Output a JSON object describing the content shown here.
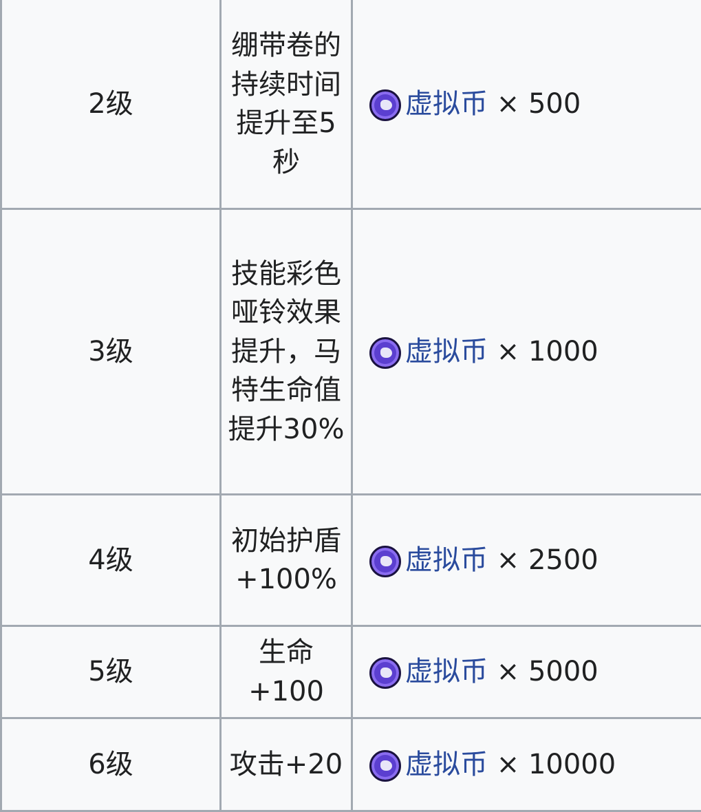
{
  "currency_icon": "coin-icon",
  "colors": {
    "border": "#a2a9b1",
    "background": "#f8f9fa",
    "link": "#2a4b9d",
    "coin": "#5b3fd0"
  },
  "rows": [
    {
      "level": "2级",
      "effect": "绷带卷的持续时间提升至5秒",
      "currency": "虚拟币",
      "amount": "× 500"
    },
    {
      "level": "3级",
      "effect": "技能彩色哑铃效果提升，马特生命值提升30%",
      "currency": "虚拟币",
      "amount": "× 1000"
    },
    {
      "level": "4级",
      "effect": "初始护盾+100%",
      "currency": "虚拟币",
      "amount": "× 2500"
    },
    {
      "level": "5级",
      "effect": "生命+100",
      "currency": "虚拟币",
      "amount": "× 5000"
    },
    {
      "level": "6级",
      "effect": "攻击+20",
      "currency": "虚拟币",
      "amount": "× 10000"
    }
  ]
}
